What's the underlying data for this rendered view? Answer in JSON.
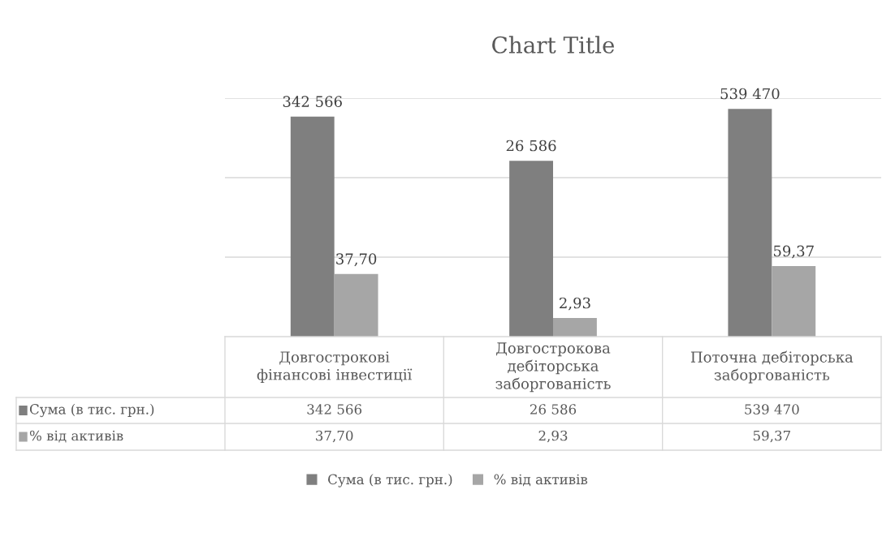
{
  "chart_data": {
    "type": "bar",
    "title": "Chart Title",
    "categories": [
      "Довгострокові\nфінансові інвестиції",
      "Довгострокова\nдебіторська\nзаборгованість",
      "Поточна дебіторська\nзаборгованість"
    ],
    "series": [
      {
        "name": "Сума (в тис. грн.)",
        "color": "#7f7f7f",
        "values": [
          342566,
          26586,
          539470
        ],
        "value_labels": [
          "342 566",
          "26 586",
          "539 470"
        ]
      },
      {
        "name": "% від активів",
        "color": "#a6a6a6",
        "values": [
          37.7,
          2.93,
          59.37
        ],
        "value_labels": [
          "37,70",
          "2,93",
          "59,37"
        ]
      }
    ],
    "log": true,
    "ylim": [
      1,
      1000000
    ],
    "yticks": [
      {
        "value": 100,
        "label": null
      },
      {
        "value": 10000,
        "label": null
      },
      {
        "value": 1000000,
        "label": null
      }
    ],
    "grid": "y",
    "legend": "bottom"
  }
}
